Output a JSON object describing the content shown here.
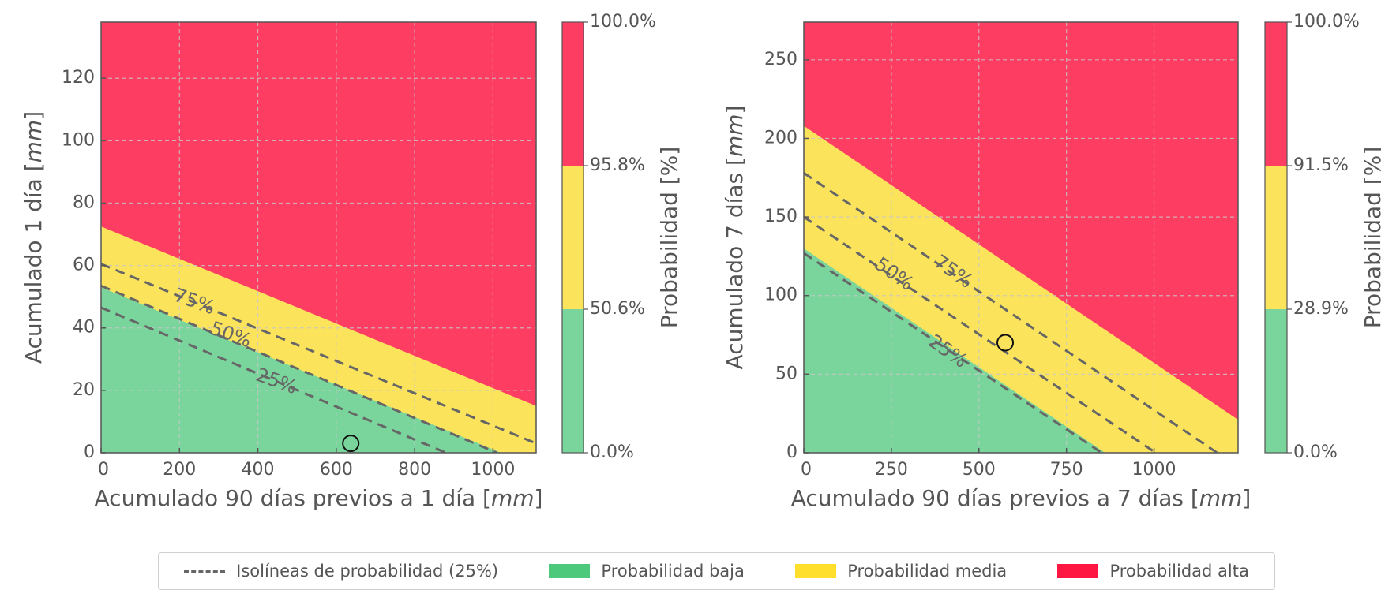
{
  "colors": {
    "low": "#79d59c",
    "medium": "#fbe35c",
    "high": "#fe3d63",
    "legend_low": "#4cc97a",
    "legend_medium": "#ffdf2b",
    "legend_high": "#ff1744",
    "isoline": "#666666",
    "grid": "#c8c8c8"
  },
  "chart_data": [
    {
      "type": "area",
      "title": "",
      "xlabel": "Acumulado 90 días previos a 1 día",
      "xlabel_unit": "mm",
      "ylabel": "Acumulado 1 día",
      "ylabel_unit": "mm",
      "xlim": [
        0,
        1110
      ],
      "ylim": [
        0,
        138
      ],
      "x_ticks": [
        0,
        200,
        400,
        600,
        800,
        1000
      ],
      "y_ticks": [
        0,
        20,
        40,
        60,
        80,
        100,
        120
      ],
      "grid": true,
      "boundaries": [
        {
          "name": "low-medium",
          "x": [
            0,
            1020
          ],
          "y": [
            53,
            0
          ]
        },
        {
          "name": "medium-high",
          "x": [
            0,
            1110
          ],
          "y": [
            72.5,
            15
          ]
        }
      ],
      "isolines": [
        {
          "label": "25%",
          "x": [
            0,
            880
          ],
          "y": [
            46.5,
            0
          ]
        },
        {
          "label": "50%",
          "x": [
            0,
            1010
          ],
          "y": [
            53.5,
            0
          ]
        },
        {
          "label": "75%",
          "x": [
            0,
            1110
          ],
          "y": [
            60.5,
            3
          ]
        }
      ],
      "point": {
        "x": 637,
        "y": 3,
        "color": "#79d59c"
      },
      "colorbar": {
        "label": "Probabilidad [%]",
        "tick_labels": [
          "100.0%",
          "95.8%",
          "50.6%",
          "0.0%"
        ]
      }
    },
    {
      "type": "area",
      "title": "",
      "xlabel": "Acumulado 90 días previos a 7 días",
      "xlabel_unit": "mm",
      "ylabel": "Acumulado 7 días",
      "ylabel_unit": "mm",
      "xlim": [
        0,
        1240
      ],
      "ylim": [
        0,
        274
      ],
      "x_ticks": [
        0,
        250,
        500,
        750,
        1000
      ],
      "y_ticks": [
        0,
        50,
        100,
        150,
        200,
        250
      ],
      "grid": true,
      "boundaries": [
        {
          "name": "low-medium",
          "x": [
            0,
            860
          ],
          "y": [
            130,
            0
          ]
        },
        {
          "name": "medium-high",
          "x": [
            0,
            1240
          ],
          "y": [
            208,
            21
          ]
        }
      ],
      "isolines": [
        {
          "label": "25%",
          "x": [
            0,
            850
          ],
          "y": [
            127,
            0
          ]
        },
        {
          "label": "50%",
          "x": [
            0,
            1005
          ],
          "y": [
            150,
            0
          ]
        },
        {
          "label": "75%",
          "x": [
            0,
            1180
          ],
          "y": [
            178,
            0
          ]
        }
      ],
      "point": {
        "x": 575,
        "y": 70,
        "color": "#fbe35c"
      },
      "colorbar": {
        "label": "Probabilidad [%]",
        "tick_labels": [
          "100.0%",
          "91.5%",
          "28.9%",
          "0.0%"
        ]
      }
    }
  ],
  "legend": {
    "isolines": "Isolíneas de probabilidad (25%)",
    "low": "Probabilidad baja",
    "medium": "Probabilidad media",
    "high": "Probabilidad alta"
  }
}
